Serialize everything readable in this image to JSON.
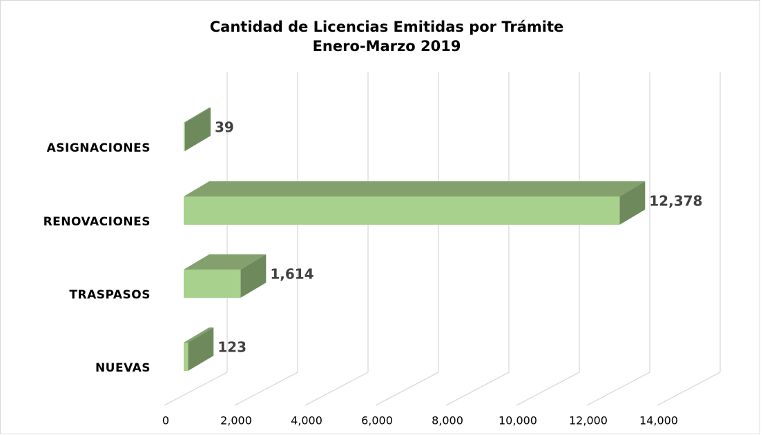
{
  "chart_data": {
    "type": "bar3d_horizontal",
    "title": [
      "Cantidad de Licencias Emitidas por Trámite",
      "Enero-Marzo 2019"
    ],
    "categories": [
      "ASIGNACIONES",
      "RENOVACIONES",
      "TRASPASOS",
      "NUEVAS"
    ],
    "values": [
      39,
      12378,
      1614,
      123
    ],
    "value_labels": [
      "39",
      "12,378",
      "1,614",
      "123"
    ],
    "colors": {
      "front": "#a9d18e",
      "top": "#83a06d",
      "side": "#6e8a5c"
    },
    "xlim": [
      0,
      14000
    ],
    "xticks": [
      0,
      {
        "value": 2000,
        "label": "2,000"
      },
      {
        "value": 4000,
        "label": "4,000"
      },
      {
        "value": 6000,
        "label": "6,000"
      },
      {
        "value": 8000,
        "label": "8,000"
      },
      {
        "value": 10000,
        "label": "10,000"
      },
      {
        "value": 12000,
        "label": "12,000"
      },
      {
        "value": 14000,
        "label": "14,000"
      }
    ],
    "grid": true
  }
}
